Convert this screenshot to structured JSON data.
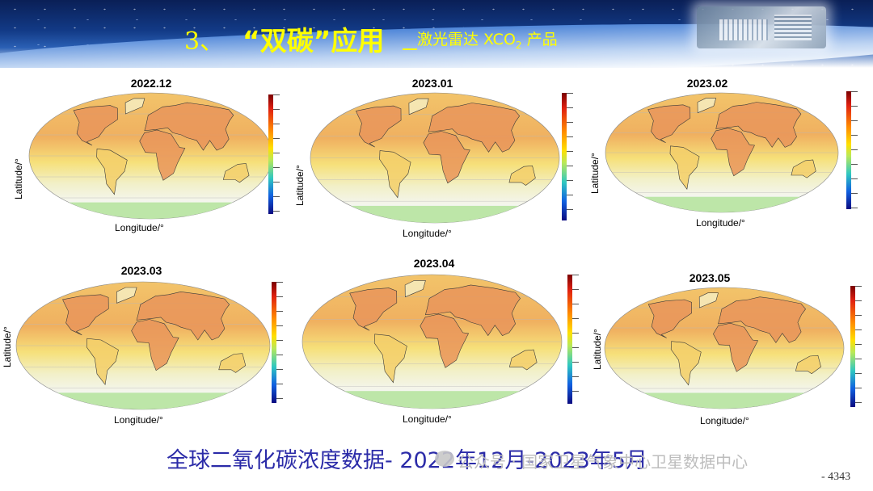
{
  "header": {
    "number": "3、",
    "title": "“双碳”应用",
    "subtitle_prefix": "激光雷达 XCO",
    "subtitle_sub": "2",
    "subtitle_suffix": " 产品"
  },
  "colors": {
    "title": "#ffff00",
    "caption": "#2b2ba8",
    "ocean": "#f3e27c",
    "land": "#e9955a",
    "antarctic": "#bde6a8"
  },
  "panels": [
    {
      "title": "2022.12",
      "ylabel": "Latitude/°",
      "xlabel": "Longitude/°"
    },
    {
      "title": "2023.01",
      "ylabel": "Latitude/°",
      "xlabel": "Longitude/°"
    },
    {
      "title": "2023.02",
      "ylabel": "Latitude/°",
      "xlabel": "Longitude/°"
    },
    {
      "title": "2023.03",
      "ylabel": "Latitude/°",
      "xlabel": "Longitude/°"
    },
    {
      "title": "2023.04",
      "ylabel": "",
      "xlabel": "Longitude/°"
    },
    {
      "title": "2023.05",
      "ylabel": "Latitude/°",
      "xlabel": "Longitude/°"
    }
  ],
  "caption": "全球二氧化碳浓度数据- 2022年12月-2023年5月",
  "watermark": "公众号 · 国家卫星气象中心卫星数据中心",
  "page_number": "- 4343"
}
